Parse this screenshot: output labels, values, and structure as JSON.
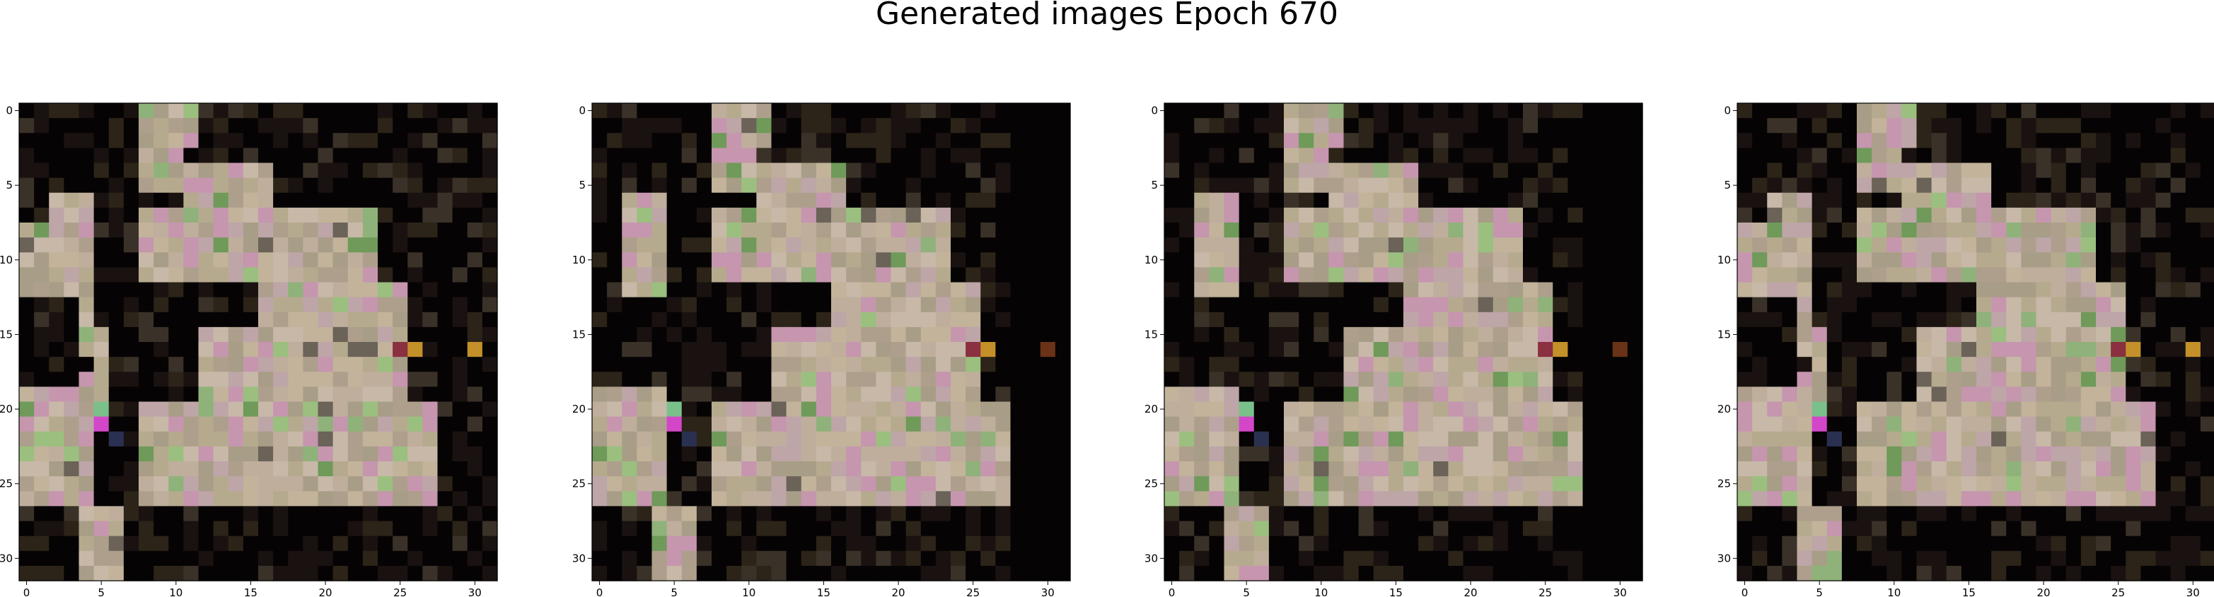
{
  "title": "Generated images Epoch 670",
  "axis": {
    "xticks": [
      0,
      5,
      10,
      15,
      20,
      25,
      30
    ],
    "yticks": [
      0,
      5,
      10,
      15,
      20,
      25,
      30
    ],
    "range": [
      -0.5,
      31.5
    ]
  },
  "panels": [
    {
      "name": "generated-image-1",
      "variant": 0
    },
    {
      "name": "generated-image-2",
      "variant": 1
    },
    {
      "name": "generated-image-3",
      "variant": 2
    },
    {
      "name": "generated-image-4",
      "variant": 3
    }
  ],
  "colors": {
    "background": "#ffffff",
    "dark_pixel": "#060304",
    "light_pixel": "#bfae9c",
    "pink_pixel": "#c596ae",
    "green_pixel": "#8fb27a",
    "magenta_pixel": "#d346c8",
    "gold_pixel": "#c3902a",
    "red_pixel": "#8a3040"
  }
}
